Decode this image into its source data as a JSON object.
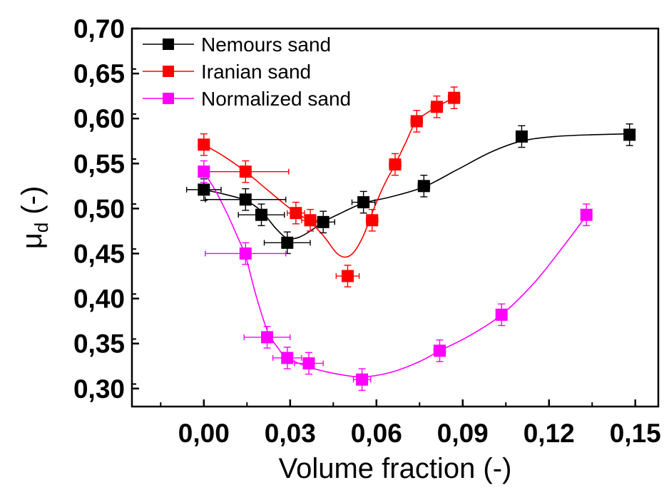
{
  "chart_data": {
    "type": "scatter",
    "xlabel": "Volume fraction (-)",
    "ylabel_main": "μ",
    "ylabel_sub": "d",
    "ylabel_tail": " (-)",
    "xlim": [
      -0.025,
      0.158
    ],
    "ylim": [
      0.28,
      0.7
    ],
    "x_ticks": [
      0.0,
      0.03,
      0.06,
      0.09,
      0.12,
      0.15
    ],
    "x_tick_labels": [
      "0,00",
      "0,03",
      "0,06",
      "0,09",
      "0,12",
      "0,15"
    ],
    "y_ticks": [
      0.3,
      0.35,
      0.4,
      0.45,
      0.5,
      0.55,
      0.6,
      0.65,
      0.7
    ],
    "y_tick_labels": [
      "0,30",
      "0,35",
      "0,40",
      "0,45",
      "0,50",
      "0,55",
      "0,60",
      "0,65",
      "0,70"
    ],
    "legend_position": "top-left",
    "grid": false,
    "series": [
      {
        "name": "Nemours sand",
        "color": "#000000",
        "points": [
          {
            "x": 0.0,
            "y": 0.521,
            "xerr": 0.006,
            "yerr": 0.012
          },
          {
            "x": 0.0145,
            "y": 0.51,
            "xerr": 0.014,
            "yerr": 0.012
          },
          {
            "x": 0.02,
            "y": 0.493,
            "xerr": 0.008,
            "yerr": 0.012
          },
          {
            "x": 0.029,
            "y": 0.462,
            "xerr": 0.008,
            "yerr": 0.012
          },
          {
            "x": 0.0415,
            "y": 0.485,
            "xerr": 0.004,
            "yerr": 0.012
          },
          {
            "x": 0.0555,
            "y": 0.507,
            "xerr": 0.004,
            "yerr": 0.012
          },
          {
            "x": 0.0765,
            "y": 0.525,
            "xerr": 0.002,
            "yerr": 0.012
          },
          {
            "x": 0.1105,
            "y": 0.58,
            "xerr": 0.001,
            "yerr": 0.012
          },
          {
            "x": 0.148,
            "y": 0.582,
            "xerr": 0.001,
            "yerr": 0.012
          }
        ],
        "fit": [
          [
            0.0,
            0.521
          ],
          [
            0.007,
            0.516
          ],
          [
            0.0145,
            0.509
          ],
          [
            0.02,
            0.497
          ],
          [
            0.025,
            0.478
          ],
          [
            0.029,
            0.467
          ],
          [
            0.033,
            0.468
          ],
          [
            0.037,
            0.475
          ],
          [
            0.0415,
            0.485
          ],
          [
            0.047,
            0.494
          ],
          [
            0.0555,
            0.506
          ],
          [
            0.065,
            0.513
          ],
          [
            0.0765,
            0.524
          ],
          [
            0.088,
            0.543
          ],
          [
            0.1,
            0.563
          ],
          [
            0.1105,
            0.575
          ],
          [
            0.122,
            0.58
          ],
          [
            0.135,
            0.582
          ],
          [
            0.148,
            0.583
          ]
        ]
      },
      {
        "name": "Iranian sand",
        "color": "#ff0000",
        "points": [
          {
            "x": 0.0,
            "y": 0.571,
            "xerr": 0.0005,
            "yerr": 0.012
          },
          {
            "x": 0.0145,
            "y": 0.541,
            "xerr": 0.015,
            "yerr": 0.012
          },
          {
            "x": 0.032,
            "y": 0.495,
            "xerr": 0.003,
            "yerr": 0.012
          },
          {
            "x": 0.037,
            "y": 0.487,
            "xerr": 0.003,
            "yerr": 0.012
          },
          {
            "x": 0.05,
            "y": 0.425,
            "xerr": 0.004,
            "yerr": 0.012
          },
          {
            "x": 0.0585,
            "y": 0.487,
            "xerr": 0.002,
            "yerr": 0.012
          },
          {
            "x": 0.0665,
            "y": 0.549,
            "xerr": 0.002,
            "yerr": 0.012
          },
          {
            "x": 0.074,
            "y": 0.597,
            "xerr": 0.002,
            "yerr": 0.012
          },
          {
            "x": 0.081,
            "y": 0.613,
            "xerr": 0.002,
            "yerr": 0.012
          },
          {
            "x": 0.087,
            "y": 0.623,
            "xerr": 0.002,
            "yerr": 0.012
          }
        ],
        "fit": [
          [
            0.0,
            0.571
          ],
          [
            0.007,
            0.558
          ],
          [
            0.0145,
            0.541
          ],
          [
            0.022,
            0.521
          ],
          [
            0.03,
            0.5
          ],
          [
            0.037,
            0.485
          ],
          [
            0.042,
            0.468
          ],
          [
            0.046,
            0.451
          ],
          [
            0.049,
            0.446
          ],
          [
            0.052,
            0.451
          ],
          [
            0.0555,
            0.47
          ],
          [
            0.0585,
            0.495
          ],
          [
            0.0625,
            0.525
          ],
          [
            0.0665,
            0.549
          ],
          [
            0.07,
            0.572
          ],
          [
            0.074,
            0.597
          ],
          [
            0.081,
            0.613
          ],
          [
            0.087,
            0.623
          ]
        ]
      },
      {
        "name": "Normalized sand",
        "color": "#ff00ff",
        "points": [
          {
            "x": 0.0,
            "y": 0.541,
            "xerr": 0.001,
            "yerr": 0.012
          },
          {
            "x": 0.0145,
            "y": 0.45,
            "xerr": 0.014,
            "yerr": 0.012
          },
          {
            "x": 0.022,
            "y": 0.357,
            "xerr": 0.008,
            "yerr": 0.012
          },
          {
            "x": 0.029,
            "y": 0.334,
            "xerr": 0.005,
            "yerr": 0.012
          },
          {
            "x": 0.0365,
            "y": 0.328,
            "xerr": 0.005,
            "yerr": 0.012
          },
          {
            "x": 0.055,
            "y": 0.31,
            "xerr": 0.003,
            "yerr": 0.012
          },
          {
            "x": 0.082,
            "y": 0.342,
            "xerr": 0.002,
            "yerr": 0.012
          },
          {
            "x": 0.1035,
            "y": 0.382,
            "xerr": 0.001,
            "yerr": 0.012
          },
          {
            "x": 0.133,
            "y": 0.493,
            "xerr": 0.001,
            "yerr": 0.012
          }
        ],
        "fit": [
          [
            0.0,
            0.541
          ],
          [
            0.004,
            0.52
          ],
          [
            0.008,
            0.495
          ],
          [
            0.0115,
            0.47
          ],
          [
            0.0145,
            0.447
          ],
          [
            0.018,
            0.405
          ],
          [
            0.022,
            0.365
          ],
          [
            0.026,
            0.344
          ],
          [
            0.029,
            0.334
          ],
          [
            0.0365,
            0.324
          ],
          [
            0.045,
            0.317
          ],
          [
            0.055,
            0.313
          ],
          [
            0.065,
            0.318
          ],
          [
            0.075,
            0.33
          ],
          [
            0.082,
            0.342
          ],
          [
            0.092,
            0.358
          ],
          [
            0.1035,
            0.382
          ],
          [
            0.115,
            0.418
          ],
          [
            0.125,
            0.458
          ],
          [
            0.133,
            0.492
          ]
        ]
      }
    ]
  }
}
